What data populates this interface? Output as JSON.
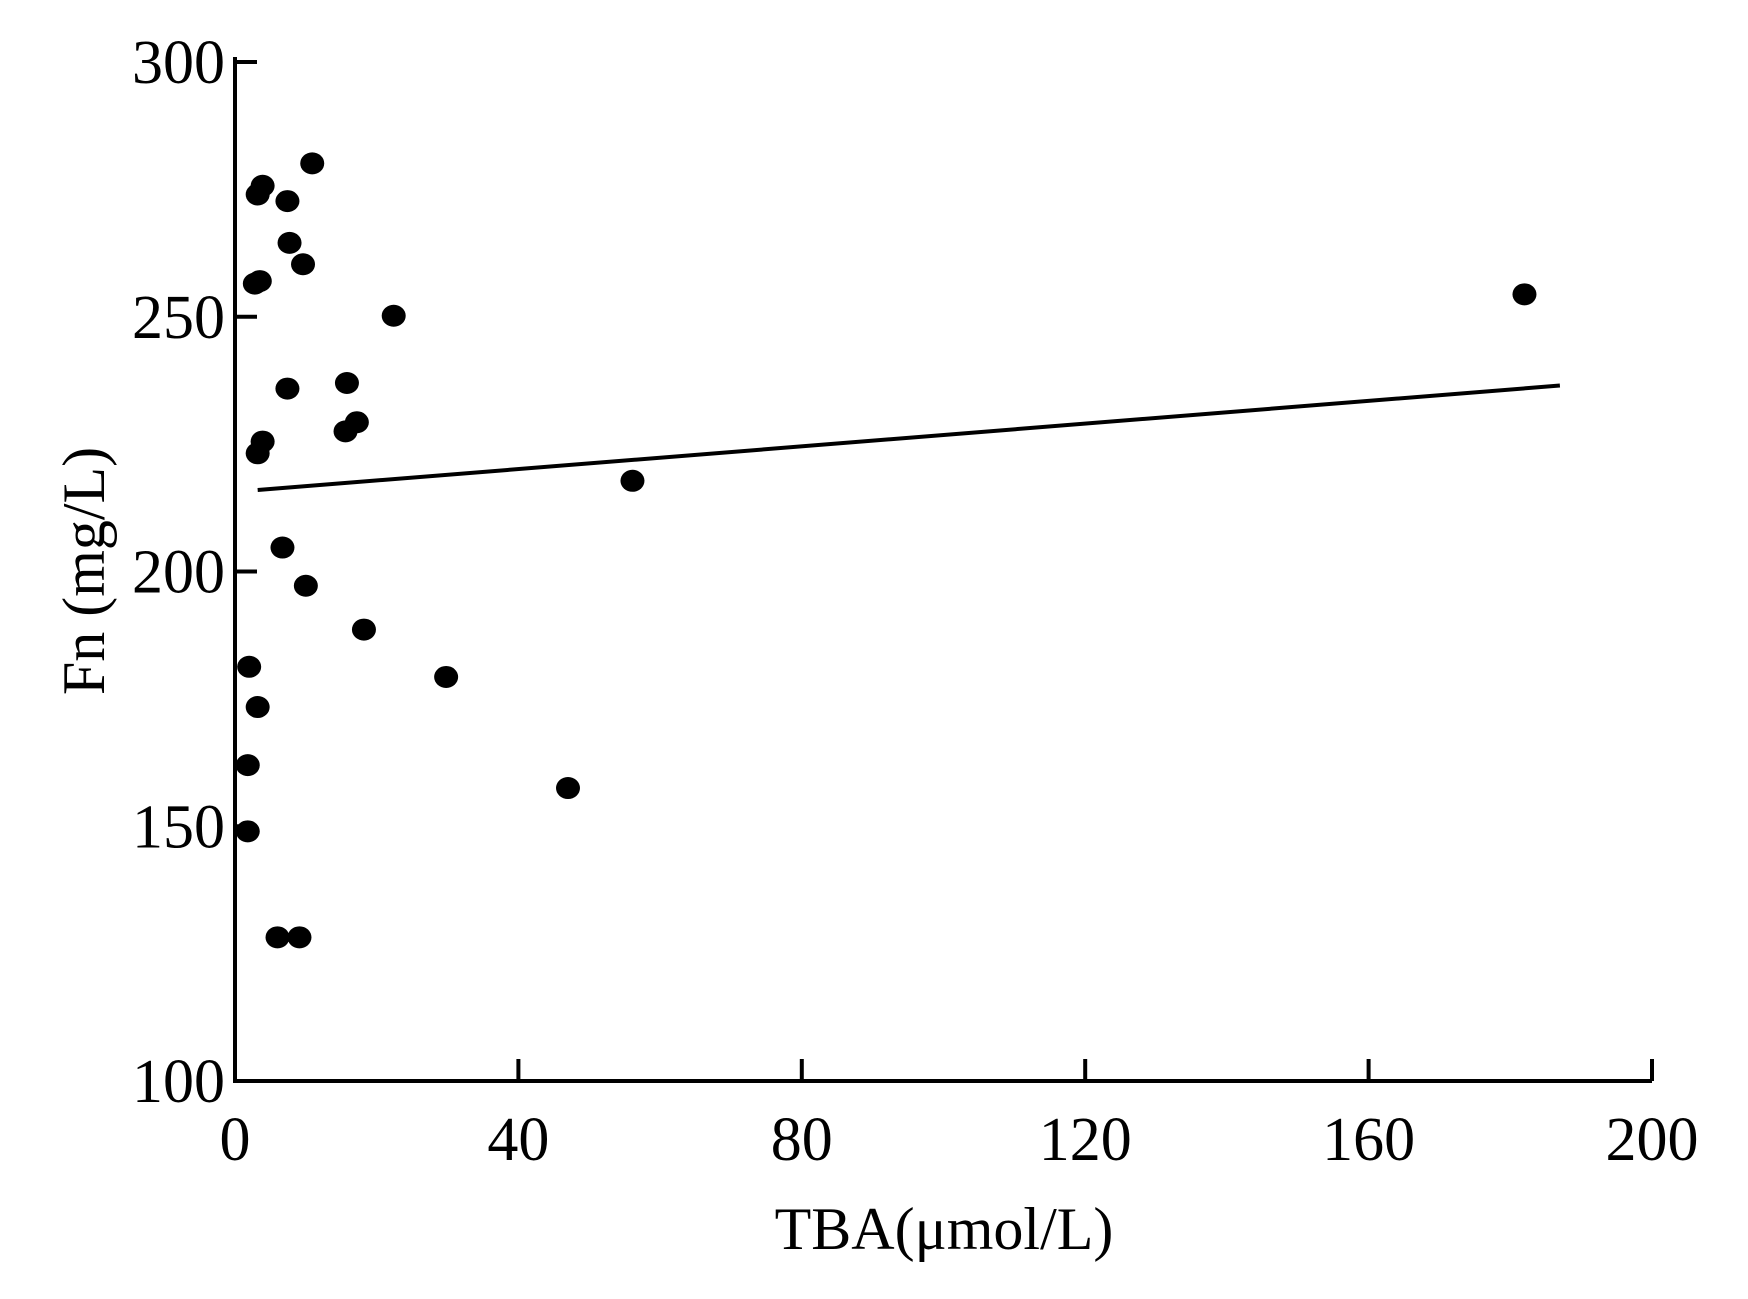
{
  "chart_data": {
    "type": "scatter",
    "title": "",
    "xlabel": "TBA(μmol/L)",
    "ylabel": "Fn (mg/L)",
    "xlim": [
      0,
      200
    ],
    "ylim": [
      100,
      300
    ],
    "x_ticks": [
      0,
      40,
      80,
      120,
      160,
      200
    ],
    "y_ticks": [
      100,
      150,
      200,
      250,
      300
    ],
    "x_tick_labels": [
      "0",
      "40",
      "80",
      "120",
      "160",
      "200"
    ],
    "y_tick_labels": [
      "100",
      "150",
      "200",
      "250",
      "300"
    ],
    "grid": false,
    "legend": "none",
    "colors": {
      "points": "#000000",
      "line": "#000000",
      "axes": "#000000"
    },
    "points": [
      {
        "x": 10.9,
        "y": 280.1
      },
      {
        "x": 3.9,
        "y": 275.7
      },
      {
        "x": 3.2,
        "y": 274.0
      },
      {
        "x": 7.4,
        "y": 272.7
      },
      {
        "x": 7.7,
        "y": 264.5
      },
      {
        "x": 9.6,
        "y": 260.3
      },
      {
        "x": 2.8,
        "y": 256.5
      },
      {
        "x": 3.5,
        "y": 257.0
      },
      {
        "x": 22.4,
        "y": 250.2
      },
      {
        "x": 182.0,
        "y": 254.4
      },
      {
        "x": 15.8,
        "y": 237.0
      },
      {
        "x": 7.4,
        "y": 235.9
      },
      {
        "x": 17.2,
        "y": 229.3
      },
      {
        "x": 15.6,
        "y": 227.5
      },
      {
        "x": 3.9,
        "y": 225.5
      },
      {
        "x": 3.2,
        "y": 223.2
      },
      {
        "x": 56.1,
        "y": 217.8
      },
      {
        "x": 6.7,
        "y": 204.7
      },
      {
        "x": 10.0,
        "y": 197.2
      },
      {
        "x": 18.2,
        "y": 188.6
      },
      {
        "x": 2.0,
        "y": 181.3
      },
      {
        "x": 29.8,
        "y": 179.3
      },
      {
        "x": 3.2,
        "y": 173.4
      },
      {
        "x": 1.8,
        "y": 162.0
      },
      {
        "x": 47.0,
        "y": 157.5
      },
      {
        "x": 1.8,
        "y": 149.0
      },
      {
        "x": 6.0,
        "y": 128.2
      },
      {
        "x": 9.1,
        "y": 128.2
      }
    ],
    "fit_line": {
      "x": [
        3.2,
        187.0
      ],
      "y": [
        216.0,
        236.5
      ]
    }
  }
}
